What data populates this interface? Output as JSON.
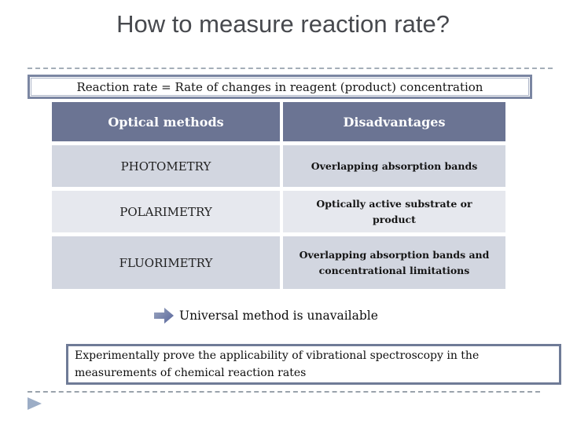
{
  "slide": {
    "title": "How to measure reaction rate?",
    "statement": "Reaction rate = Rate of changes in reagent (product) concentration",
    "table": {
      "headers": [
        "Optical methods",
        "Disadvantages"
      ],
      "rows": [
        {
          "method": "PHOTOMETRY",
          "disadvantage": "Overlapping absorption bands"
        },
        {
          "method": "POLARIMETRY",
          "disadvantage": "Optically active substrate or product"
        },
        {
          "method": "FLUORIMETRY",
          "disadvantage": "Overlapping absorption bands and concentrational limitations"
        }
      ]
    },
    "conclusion": "Universal method is unavailable",
    "task": "Experimentally prove the applicability of vibrational spectroscopy in the measurements of chemical reaction rates",
    "icons": {
      "block_arrow": "right-block-arrow",
      "corner_triangle": "right-play-triangle"
    },
    "colors": {
      "title_text": "#47494e",
      "header_bg": "#6b7493",
      "row_shade_a": "#d2d6e0",
      "row_shade_b": "#e6e8ee",
      "box_border": "#7b86a2",
      "dashed_line": "#a4aeb8",
      "arrow_fill": "#55639a",
      "triangle_fill": "#9cadc6"
    }
  }
}
